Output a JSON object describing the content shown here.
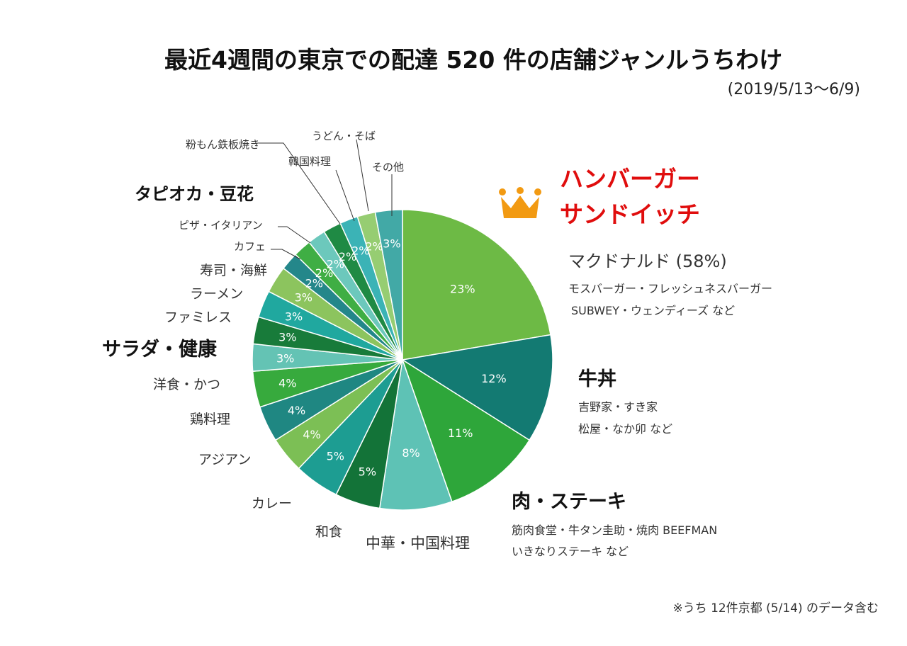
{
  "chart_data": {
    "type": "pie",
    "title": "最近4週間の東京での配達 520 件の店舗ジャンルうちわけ",
    "subtitle": "(2019/5/13〜6/9)",
    "slices": [
      {
        "label": "ハンバーガー\nサンドイッチ",
        "value": 23,
        "pct_label": "23%",
        "color": "#6dba45"
      },
      {
        "label": "牛丼",
        "value": 12,
        "pct_label": "12%",
        "color": "#137a72"
      },
      {
        "label": "肉・ステーキ",
        "value": 11,
        "pct_label": "11%",
        "color": "#2ea63a"
      },
      {
        "label": "中華・中国料理",
        "value": 8,
        "pct_label": "8%",
        "color": "#5ec2b5"
      },
      {
        "label": "和食",
        "value": 5,
        "pct_label": "5%",
        "color": "#137338"
      },
      {
        "label": "カレー",
        "value": 5,
        "pct_label": "5%",
        "color": "#1d9d92"
      },
      {
        "label": "アジアン",
        "value": 4,
        "pct_label": "4%",
        "color": "#7cbf55"
      },
      {
        "label": "鶏料理",
        "value": 4,
        "pct_label": "4%",
        "color": "#1f8782"
      },
      {
        "label": "洋食・かつ",
        "value": 4,
        "pct_label": "4%",
        "color": "#37aa3d"
      },
      {
        "label": "サラダ・健康",
        "value": 3,
        "pct_label": "3%",
        "color": "#64c3b4"
      },
      {
        "label": "ファミレス",
        "value": 3,
        "pct_label": "3%",
        "color": "#187b3a"
      },
      {
        "label": "ラーメン",
        "value": 3,
        "pct_label": "3%",
        "color": "#20a89f"
      },
      {
        "label": "寿司・海鮮",
        "value": 3,
        "pct_label": "3%",
        "color": "#8cc45e"
      },
      {
        "label": "カフェ",
        "value": 2,
        "pct_label": "2%",
        "color": "#24878a"
      },
      {
        "label": "ピザ・イタリアン",
        "value": 2,
        "pct_label": "2%",
        "color": "#3fae44"
      },
      {
        "label": "タピオカ・豆花",
        "value": 2,
        "pct_label": "2%",
        "color": "#6cc8bc"
      },
      {
        "label": "粉もん鉄板焼き",
        "value": 2,
        "pct_label": "2%",
        "color": "#1f8a44"
      },
      {
        "label": "韓国料理",
        "value": 2,
        "pct_label": "2%",
        "color": "#3bb3b6"
      },
      {
        "label": "うどん・そば",
        "value": 2,
        "pct_label": "2%",
        "color": "#96cd72"
      },
      {
        "label": "その他",
        "value": 3,
        "pct_label": "3%",
        "color": "#42a9a6"
      }
    ],
    "details": {
      "burger_brand": "マクドナルド (58%)",
      "burger_line1": "モスバーガー・フレッシュネスバーガー",
      "burger_line2": "SUBWEY・ウェンディーズ など",
      "gyudon_line1": "吉野家・すき家",
      "gyudon_line2": "松屋・なか卯 など",
      "meat_line1": "筋肉食堂・牛タン圭助・焼肉 BEEFMAN",
      "meat_line2": "いきなりステーキ など"
    },
    "footnote": "※うち 12件京都 (5/14) のデータ含む",
    "colors": {
      "highlight": "#e00d0d",
      "crown": "#f29a12",
      "leader": "#333333"
    }
  }
}
